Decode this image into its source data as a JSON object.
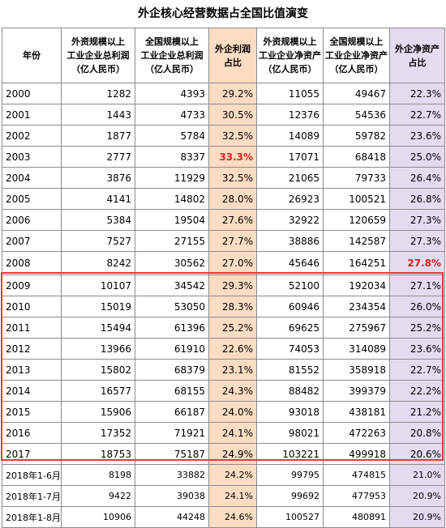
{
  "title": "外企核心经营数据占全国比值演变",
  "headers": {
    "year": "年份",
    "foreign_profit": [
      "外资规模以上",
      "工业企业总利润",
      "（亿人民币）"
    ],
    "national_profit": [
      "全国规模以上",
      "工业企业总利润",
      "（亿人民币）"
    ],
    "profit_share": [
      "外企利润",
      "占比"
    ],
    "foreign_assets": [
      "外资规模以上",
      "工业企业净资产",
      "（亿人民币）"
    ],
    "national_assets": [
      "全国规模以上",
      "工业企业净资产",
      "（亿人民币）"
    ],
    "asset_share": [
      "外企净资产",
      "占比"
    ]
  },
  "rows": [
    {
      "year": "2000",
      "fp": "1282",
      "np": "4393",
      "ps": "29.2%",
      "fa": "11055",
      "na": "49467",
      "as": "22.3%"
    },
    {
      "year": "2001",
      "fp": "1443",
      "np": "4733",
      "ps": "30.5%",
      "fa": "12376",
      "na": "54536",
      "as": "22.7%"
    },
    {
      "year": "2002",
      "fp": "1877",
      "np": "5784",
      "ps": "32.5%",
      "fa": "14089",
      "na": "59782",
      "as": "23.6%"
    },
    {
      "year": "2003",
      "fp": "2777",
      "np": "8337",
      "ps": "33.3%",
      "fa": "17071",
      "na": "68418",
      "as": "25.0%"
    },
    {
      "year": "2004",
      "fp": "3876",
      "np": "11929",
      "ps": "32.5%",
      "fa": "21065",
      "na": "79733",
      "as": "26.4%"
    },
    {
      "year": "2005",
      "fp": "4141",
      "np": "14802",
      "ps": "28.0%",
      "fa": "26923",
      "na": "100521",
      "as": "26.8%"
    },
    {
      "year": "2006",
      "fp": "5384",
      "np": "19504",
      "ps": "27.6%",
      "fa": "32922",
      "na": "120659",
      "as": "27.3%"
    },
    {
      "year": "2007",
      "fp": "7527",
      "np": "27155",
      "ps": "27.7%",
      "fa": "38886",
      "na": "142587",
      "as": "27.3%"
    },
    {
      "year": "2008",
      "fp": "8242",
      "np": "30562",
      "ps": "27.0%",
      "fa": "45646",
      "na": "164251",
      "as": "27.8%"
    },
    {
      "year": "2009",
      "fp": "10107",
      "np": "34542",
      "ps": "29.3%",
      "fa": "52100",
      "na": "192034",
      "as": "27.1%"
    },
    {
      "year": "2010",
      "fp": "15019",
      "np": "53050",
      "ps": "28.3%",
      "fa": "60946",
      "na": "234354",
      "as": "26.0%"
    },
    {
      "year": "2011",
      "fp": "15494",
      "np": "61396",
      "ps": "25.2%",
      "fa": "69625",
      "na": "275967",
      "as": "25.2%"
    },
    {
      "year": "2012",
      "fp": "13966",
      "np": "61910",
      "ps": "22.6%",
      "fa": "74053",
      "na": "314089",
      "as": "23.6%"
    },
    {
      "year": "2013",
      "fp": "15802",
      "np": "68379",
      "ps": "23.1%",
      "fa": "81552",
      "na": "358918",
      "as": "22.7%"
    },
    {
      "year": "2014",
      "fp": "16577",
      "np": "68155",
      "ps": "24.3%",
      "fa": "88482",
      "na": "399379",
      "as": "22.2%"
    },
    {
      "year": "2015",
      "fp": "15906",
      "np": "66187",
      "ps": "24.0%",
      "fa": "93018",
      "na": "438181",
      "as": "21.2%"
    },
    {
      "year": "2016",
      "fp": "17352",
      "np": "71921",
      "ps": "24.1%",
      "fa": "98021",
      "na": "472263",
      "as": "20.8%"
    },
    {
      "year": "2017",
      "fp": "18753",
      "np": "75187",
      "ps": "24.9%",
      "fa": "103221",
      "na": "499918",
      "as": "20.6%"
    },
    {
      "year": "2018年1-6月",
      "fp": "8198",
      "np": "33882",
      "ps": "24.2%",
      "fa": "99795",
      "na": "474815",
      "as": "21.0%"
    },
    {
      "year": "2018年1-7月",
      "fp": "9422",
      "np": "39038",
      "ps": "24.1%",
      "fa": "99692",
      "na": "477953",
      "as": "20.9%"
    },
    {
      "year": "2018年1-8月",
      "fp": "10906",
      "np": "44248",
      "ps": "24.6%",
      "fa": "100527",
      "na": "480891",
      "as": "20.9%"
    }
  ],
  "highlights": {
    "max_profit_share_year": "2003",
    "max_asset_share_year": "2008",
    "highlight_color": "#e02020",
    "profit_share_fill": "#fcdcc3",
    "asset_share_fill": "#e3dcf1",
    "boxed_range": [
      "2009",
      "2017"
    ],
    "box_color": "#e03b3b"
  }
}
